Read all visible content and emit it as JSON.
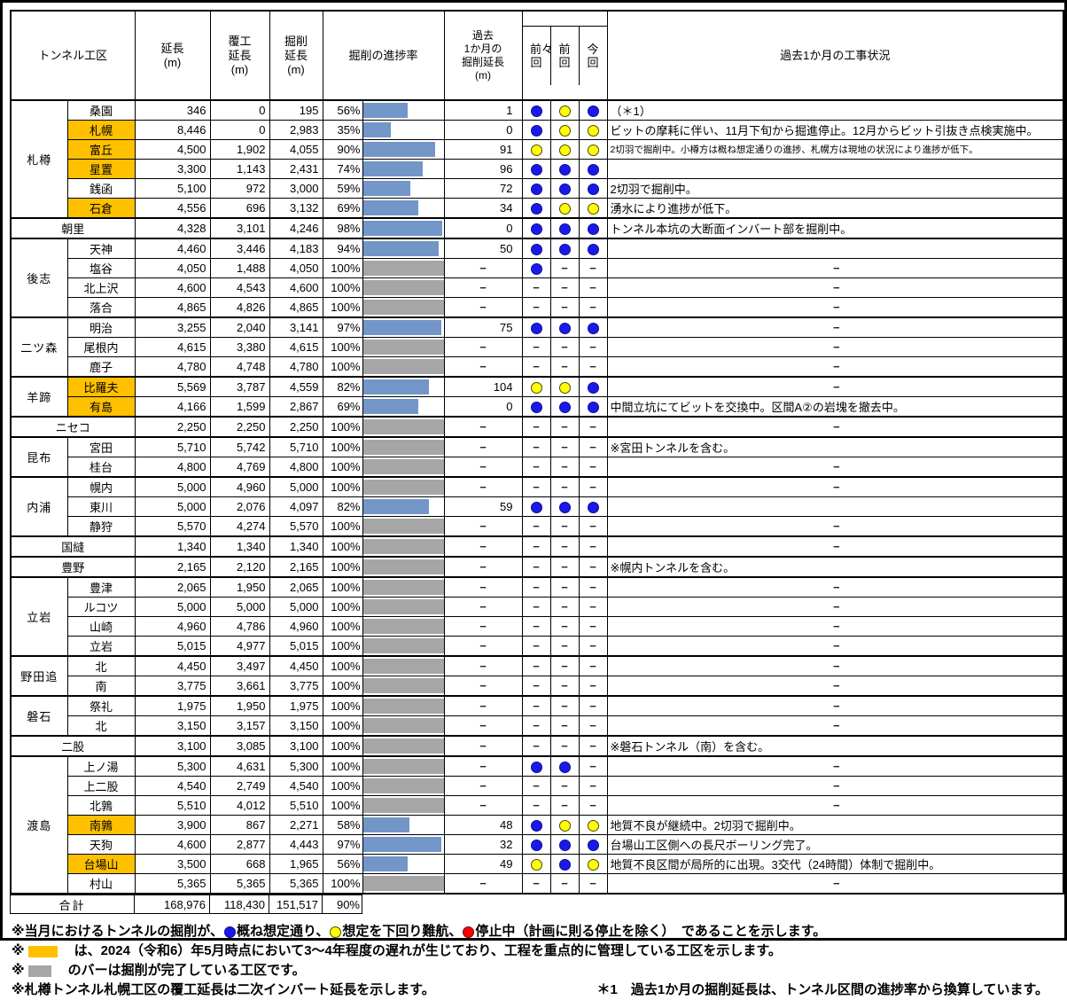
{
  "colors": {
    "highlight_orange": "#ffc000",
    "bar_blue": "#7396c8",
    "bar_gray": "#a6a6a6",
    "dot_blue": "#1a1ae8",
    "dot_yellow": "#ffff00",
    "dot_red": "#ff0000"
  },
  "header": {
    "section": "トンネル工区",
    "length": "延長\n(m)",
    "lining": "覆工\n延長\n(m)",
    "excavation": "掘削\n延長\n(m)",
    "progress": "掘削の進捗率",
    "month": "過去\n1か月の\n掘削延長\n(m)",
    "prev2": "前々回",
    "prev": "前回",
    "current": "今回",
    "status": "過去1か月の工事状況"
  },
  "groups": [
    {
      "name": "札樽",
      "rows": [
        {
          "name": "桑園",
          "hl": false,
          "len": "346",
          "lin": "0",
          "exc": "195",
          "pct": 56,
          "month": "1",
          "dots": [
            "blue",
            "yellow",
            "blue"
          ],
          "status": "（＊1）"
        },
        {
          "name": "札幌",
          "hl": true,
          "len": "8,446",
          "lin": "0",
          "exc": "2,983",
          "pct": 35,
          "month": "0",
          "dots": [
            "blue",
            "yellow",
            "yellow"
          ],
          "status": "ビットの摩耗に伴い、11月下旬から掘進停止。12月からビット引抜き点検実施中。"
        },
        {
          "name": "富丘",
          "hl": true,
          "len": "4,500",
          "lin": "1,902",
          "exc": "4,055",
          "pct": 90,
          "month": "91",
          "dots": [
            "yellow",
            "yellow",
            "yellow"
          ],
          "status": "2切羽で掘削中。小樽方は概ね想定通りの進捗、札幌方は現地の状況により進捗が低下。",
          "status_small": true
        },
        {
          "name": "星置",
          "hl": true,
          "len": "3,300",
          "lin": "1,143",
          "exc": "2,431",
          "pct": 74,
          "month": "96",
          "dots": [
            "blue",
            "blue",
            "blue"
          ],
          "status": ""
        },
        {
          "name": "銭函",
          "hl": false,
          "len": "5,100",
          "lin": "972",
          "exc": "3,000",
          "pct": 59,
          "month": "72",
          "dots": [
            "blue",
            "blue",
            "blue"
          ],
          "status": "2切羽で掘削中。"
        },
        {
          "name": "石倉",
          "hl": true,
          "len": "4,556",
          "lin": "696",
          "exc": "3,132",
          "pct": 69,
          "month": "34",
          "dots": [
            "blue",
            "yellow",
            "yellow"
          ],
          "status": "湧水により進捗が低下。"
        }
      ]
    },
    {
      "name": "朝里",
      "merged": true,
      "rows": [
        {
          "name": "朝里",
          "len": "4,328",
          "lin": "3,101",
          "exc": "4,246",
          "pct": 98,
          "month": "0",
          "dots": [
            "blue",
            "blue",
            "blue"
          ],
          "status": "トンネル本坑の大断面インバート部を掘削中。"
        }
      ]
    },
    {
      "name": "後志",
      "rows": [
        {
          "name": "天神",
          "len": "4,460",
          "lin": "3,446",
          "exc": "4,183",
          "pct": 94,
          "month": "50",
          "dots": [
            "blue",
            "blue",
            "blue"
          ],
          "status": ""
        },
        {
          "name": "塩谷",
          "len": "4,050",
          "lin": "1,488",
          "exc": "4,050",
          "pct": 100,
          "month": "−",
          "dots": [
            "blue",
            "dash",
            "dash"
          ],
          "status": "−"
        },
        {
          "name": "北上沢",
          "len": "4,600",
          "lin": "4,543",
          "exc": "4,600",
          "pct": 100,
          "month": "−",
          "dots": [
            "dash",
            "dash",
            "dash"
          ],
          "status": "−"
        },
        {
          "name": "落合",
          "len": "4,865",
          "lin": "4,826",
          "exc": "4,865",
          "pct": 100,
          "month": "−",
          "dots": [
            "dash",
            "dash",
            "dash"
          ],
          "status": "−"
        }
      ]
    },
    {
      "name": "二ツ森",
      "rows": [
        {
          "name": "明治",
          "len": "3,255",
          "lin": "2,040",
          "exc": "3,141",
          "pct": 97,
          "month": "75",
          "dots": [
            "blue",
            "blue",
            "blue"
          ],
          "status": "−"
        },
        {
          "name": "尾根内",
          "len": "4,615",
          "lin": "3,380",
          "exc": "4,615",
          "pct": 100,
          "month": "−",
          "dots": [
            "dash",
            "dash",
            "dash"
          ],
          "status": "−"
        },
        {
          "name": "鹿子",
          "len": "4,780",
          "lin": "4,748",
          "exc": "4,780",
          "pct": 100,
          "month": "−",
          "dots": [
            "dash",
            "dash",
            "dash"
          ],
          "status": "−"
        }
      ]
    },
    {
      "name": "羊蹄",
      "rows": [
        {
          "name": "比羅夫",
          "hl": true,
          "len": "5,569",
          "lin": "3,787",
          "exc": "4,559",
          "pct": 82,
          "month": "104",
          "dots": [
            "yellow",
            "yellow",
            "blue"
          ],
          "status": "−"
        },
        {
          "name": "有島",
          "hl": true,
          "len": "4,166",
          "lin": "1,599",
          "exc": "2,867",
          "pct": 69,
          "month": "0",
          "dots": [
            "blue",
            "blue",
            "blue"
          ],
          "status": "中間立坑にてビットを交換中。区間A②の岩塊を撤去中。"
        }
      ]
    },
    {
      "name": "ニセコ",
      "merged": true,
      "rows": [
        {
          "name": "ニセコ",
          "len": "2,250",
          "lin": "2,250",
          "exc": "2,250",
          "pct": 100,
          "month": "−",
          "dots": [
            "dash",
            "dash",
            "dash"
          ],
          "status": "−"
        }
      ]
    },
    {
      "name": "昆布",
      "rows": [
        {
          "name": "宮田",
          "len": "5,710",
          "lin": "5,742",
          "exc": "5,710",
          "pct": 100,
          "month": "−",
          "dots": [
            "dash",
            "dash",
            "dash"
          ],
          "status": "※宮田トンネルを含む。"
        },
        {
          "name": "桂台",
          "len": "4,800",
          "lin": "4,769",
          "exc": "4,800",
          "pct": 100,
          "month": "−",
          "dots": [
            "dash",
            "dash",
            "dash"
          ],
          "status": "−"
        }
      ]
    },
    {
      "name": "内浦",
      "rows": [
        {
          "name": "幌内",
          "len": "5,000",
          "lin": "4,960",
          "exc": "5,000",
          "pct": 100,
          "month": "−",
          "dots": [
            "dash",
            "dash",
            "dash"
          ],
          "status": "−"
        },
        {
          "name": "東川",
          "len": "5,000",
          "lin": "2,076",
          "exc": "4,097",
          "pct": 82,
          "month": "59",
          "dots": [
            "blue",
            "blue",
            "blue"
          ],
          "status": ""
        },
        {
          "name": "静狩",
          "len": "5,570",
          "lin": "4,274",
          "exc": "5,570",
          "pct": 100,
          "month": "−",
          "dots": [
            "dash",
            "dash",
            "dash"
          ],
          "status": "−"
        }
      ]
    },
    {
      "name": "国縫",
      "merged": true,
      "rows": [
        {
          "name": "国縫",
          "len": "1,340",
          "lin": "1,340",
          "exc": "1,340",
          "pct": 100,
          "month": "−",
          "dots": [
            "dash",
            "dash",
            "dash"
          ],
          "status": "−"
        }
      ]
    },
    {
      "name": "豊野",
      "merged": true,
      "rows": [
        {
          "name": "豊野",
          "len": "2,165",
          "lin": "2,120",
          "exc": "2,165",
          "pct": 100,
          "month": "−",
          "dots": [
            "dash",
            "dash",
            "dash"
          ],
          "status": "※幌内トンネルを含む。"
        }
      ]
    },
    {
      "name": "立岩",
      "rows": [
        {
          "name": "豊津",
          "len": "2,065",
          "lin": "1,950",
          "exc": "2,065",
          "pct": 100,
          "month": "−",
          "dots": [
            "dash",
            "dash",
            "dash"
          ],
          "status": "−"
        },
        {
          "name": "ルコツ",
          "len": "5,000",
          "lin": "5,000",
          "exc": "5,000",
          "pct": 100,
          "month": "−",
          "dots": [
            "dash",
            "dash",
            "dash"
          ],
          "status": "−"
        },
        {
          "name": "山崎",
          "len": "4,960",
          "lin": "4,786",
          "exc": "4,960",
          "pct": 100,
          "month": "−",
          "dots": [
            "dash",
            "dash",
            "dash"
          ],
          "status": "−"
        },
        {
          "name": "立岩",
          "len": "5,015",
          "lin": "4,977",
          "exc": "5,015",
          "pct": 100,
          "month": "−",
          "dots": [
            "dash",
            "dash",
            "dash"
          ],
          "status": "−"
        }
      ]
    },
    {
      "name": "野田追",
      "rows": [
        {
          "name": "北",
          "len": "4,450",
          "lin": "3,497",
          "exc": "4,450",
          "pct": 100,
          "month": "−",
          "dots": [
            "dash",
            "dash",
            "dash"
          ],
          "status": "−"
        },
        {
          "name": "南",
          "len": "3,775",
          "lin": "3,661",
          "exc": "3,775",
          "pct": 100,
          "month": "−",
          "dots": [
            "dash",
            "dash",
            "dash"
          ],
          "status": "−"
        }
      ]
    },
    {
      "name": "磐石",
      "rows": [
        {
          "name": "祭礼",
          "len": "1,975",
          "lin": "1,950",
          "exc": "1,975",
          "pct": 100,
          "month": "−",
          "dots": [
            "dash",
            "dash",
            "dash"
          ],
          "status": "−"
        },
        {
          "name": "北",
          "len": "3,150",
          "lin": "3,157",
          "exc": "3,150",
          "pct": 100,
          "month": "−",
          "dots": [
            "dash",
            "dash",
            "dash"
          ],
          "status": "−"
        }
      ]
    },
    {
      "name": "二股",
      "merged": true,
      "rows": [
        {
          "name": "二股",
          "len": "3,100",
          "lin": "3,085",
          "exc": "3,100",
          "pct": 100,
          "month": "−",
          "dots": [
            "dash",
            "dash",
            "dash"
          ],
          "status": "※磐石トンネル（南）を含む。"
        }
      ]
    },
    {
      "name": "渡島",
      "rows": [
        {
          "name": "上ノ湯",
          "len": "5,300",
          "lin": "4,631",
          "exc": "5,300",
          "pct": 100,
          "month": "−",
          "dots": [
            "blue",
            "blue",
            "dash"
          ],
          "status": "−"
        },
        {
          "name": "上二股",
          "len": "4,540",
          "lin": "2,749",
          "exc": "4,540",
          "pct": 100,
          "month": "−",
          "dots": [
            "dash",
            "dash",
            "dash"
          ],
          "status": "−"
        },
        {
          "name": "北鶉",
          "len": "5,510",
          "lin": "4,012",
          "exc": "5,510",
          "pct": 100,
          "month": "−",
          "dots": [
            "dash",
            "dash",
            "dash"
          ],
          "status": "−"
        },
        {
          "name": "南鶉",
          "hl": true,
          "len": "3,900",
          "lin": "867",
          "exc": "2,271",
          "pct": 58,
          "month": "48",
          "dots": [
            "blue",
            "yellow",
            "yellow"
          ],
          "status": "地質不良が継続中。2切羽で掘削中。"
        },
        {
          "name": "天狗",
          "len": "4,600",
          "lin": "2,877",
          "exc": "4,443",
          "pct": 97,
          "month": "32",
          "dots": [
            "blue",
            "blue",
            "blue"
          ],
          "status": "台場山工区側への長尺ボーリング完了。"
        },
        {
          "name": "台場山",
          "hl": true,
          "len": "3,500",
          "lin": "668",
          "exc": "1,965",
          "pct": 56,
          "month": "49",
          "dots": [
            "yellow",
            "blue",
            "yellow"
          ],
          "status": "地質不良区間が局所的に出現。3交代（24時間）体制で掘削中。"
        },
        {
          "name": "村山",
          "len": "5,365",
          "lin": "5,365",
          "exc": "5,365",
          "pct": 100,
          "month": "−",
          "dots": [
            "dash",
            "dash",
            "dash"
          ],
          "status": "−"
        }
      ]
    }
  ],
  "total": {
    "label": "合計",
    "length": "168,976",
    "lining": "118,430",
    "excavation": "151,517",
    "pct": "90%"
  },
  "footnotes": [
    {
      "segments": [
        {
          "text": "※当月におけるトンネルの掘削が、"
        },
        {
          "dot": "blue"
        },
        {
          "text": "概ね想定通り、"
        },
        {
          "dot": "yellow"
        },
        {
          "text": "想定を下回り難航、"
        },
        {
          "dot": "red"
        },
        {
          "text": "停止中（計画に則る停止を除く）　であることを示します。"
        }
      ]
    },
    {
      "segments": [
        {
          "text": "※"
        },
        {
          "swatch": "orange"
        },
        {
          "text": "　は、2024（令和6）年5月時点において3～4年程度の遅れが生じており、工程を重点的に管理している工区を示します。"
        }
      ]
    },
    {
      "segments": [
        {
          "text": "※"
        },
        {
          "swatch": "gray"
        },
        {
          "text": "　のバーは掘削が完了している工区です。"
        }
      ]
    },
    {
      "segments": [
        {
          "text": "※札樽トンネル札幌工区の覆工延長は二次インバート延長を示します。"
        }
      ],
      "right": "＊1　過去1か月の掘削延長は、トンネル区間の進捗率から換算しています。"
    }
  ]
}
